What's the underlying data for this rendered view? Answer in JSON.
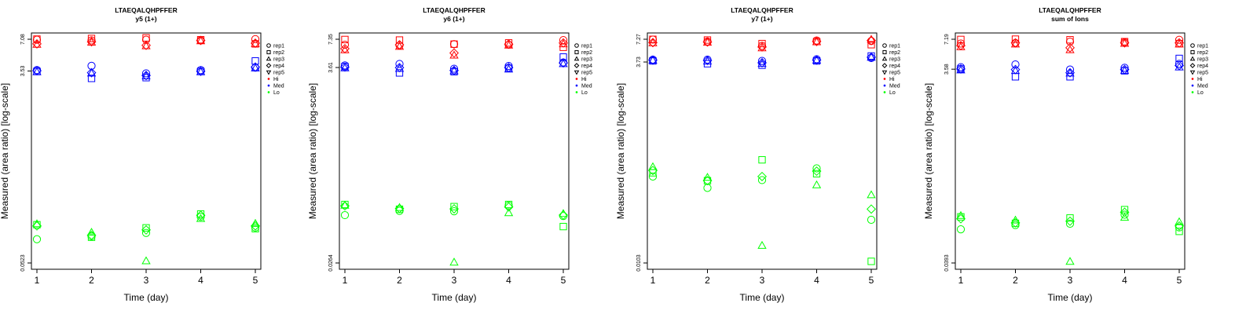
{
  "figure": {
    "colors": {
      "Hi": "#ff0000",
      "Med": "#0000ff",
      "Lo": "#00ff00"
    },
    "legend_entries": [
      {
        "label": "rep1",
        "symbol": "circle"
      },
      {
        "label": "rep2",
        "symbol": "square"
      },
      {
        "label": "rep3",
        "symbol": "triangle-up"
      },
      {
        "label": "rep4",
        "symbol": "diamond"
      },
      {
        "label": "rep5",
        "symbol": "triangle-down"
      },
      {
        "label": "Hi",
        "symbol": "dot",
        "color": "#ff0000"
      },
      {
        "label": "Med",
        "symbol": "dot",
        "color": "#0000ff"
      },
      {
        "label": "Lo",
        "symbol": "dot",
        "color": "#00ff00"
      }
    ]
  },
  "chart_data": [
    {
      "type": "scatter",
      "title": "LTAEQALQHPFFER",
      "subtitle": "y5 (1+)",
      "xlabel": "Time (day)",
      "ylabel": "Measured (area ratio) [log-scale]",
      "x": [
        1,
        2,
        3,
        4,
        5
      ],
      "xlim": [
        0.9,
        5.1
      ],
      "yscale": "log",
      "ylim": [
        0.0523,
        7.08
      ],
      "yticks": [
        "0.0523",
        "3.53",
        "7.08"
      ],
      "legend_position": "right",
      "series": [
        {
          "name": "Hi",
          "rep": "rep1",
          "values": [
            7.0,
            6.9,
            7.0,
            6.9,
            7.1
          ]
        },
        {
          "name": "Hi",
          "rep": "rep2",
          "values": [
            7.1,
            7.2,
            7.3,
            7.0,
            6.4
          ]
        },
        {
          "name": "Hi",
          "rep": "rep3",
          "values": [
            6.3,
            6.6,
            6.1,
            6.8,
            6.4
          ]
        },
        {
          "name": "Hi",
          "rep": "rep4",
          "values": [
            6.4,
            6.7,
            6.2,
            6.9,
            6.5
          ]
        },
        {
          "name": "Med",
          "rep": "rep1",
          "values": [
            3.6,
            3.95,
            3.35,
            3.6,
            3.8
          ]
        },
        {
          "name": "Med",
          "rep": "rep2",
          "values": [
            3.5,
            3.0,
            3.05,
            3.5,
            4.4
          ]
        },
        {
          "name": "Med",
          "rep": "rep3",
          "values": [
            3.45,
            3.35,
            3.15,
            3.45,
            3.75
          ]
        },
        {
          "name": "Med",
          "rep": "rep4",
          "values": [
            3.55,
            3.4,
            3.2,
            3.5,
            3.85
          ]
        },
        {
          "name": "Lo",
          "rep": "rep1",
          "values": [
            0.088,
            0.094,
            0.101,
            0.144,
            0.114
          ]
        },
        {
          "name": "Lo",
          "rep": "rep2",
          "values": [
            0.121,
            0.092,
            0.113,
            0.153,
            0.111
          ]
        },
        {
          "name": "Lo",
          "rep": "rep3",
          "values": [
            0.123,
            0.102,
            0.0545,
            0.138,
            0.124
          ]
        },
        {
          "name": "Lo",
          "rep": "rep4",
          "values": [
            0.118,
            0.096,
            0.108,
            0.149,
            0.118
          ]
        }
      ]
    },
    {
      "type": "scatter",
      "title": "LTAEQALQHPFFER",
      "subtitle": "y6 (1+)",
      "xlabel": "Time (day)",
      "ylabel": "Measured (area ratio) [log-scale]",
      "x": [
        1,
        2,
        3,
        4,
        5
      ],
      "xlim": [
        0.9,
        5.1
      ],
      "yscale": "log",
      "ylim": [
        0.0264,
        7.35
      ],
      "yticks": [
        "0.0264",
        "3.61",
        "7.35"
      ],
      "legend_position": "right",
      "series": [
        {
          "name": "Hi",
          "rep": "rep1",
          "values": [
            6.4,
            6.3,
            6.5,
            6.4,
            7.2
          ]
        },
        {
          "name": "Hi",
          "rep": "rep2",
          "values": [
            7.3,
            7.2,
            6.5,
            6.7,
            6.0
          ]
        },
        {
          "name": "Hi",
          "rep": "rep3",
          "values": [
            5.6,
            6.1,
            4.9,
            6.3,
            6.5
          ]
        },
        {
          "name": "Hi",
          "rep": "rep4",
          "values": [
            5.8,
            6.4,
            5.2,
            6.5,
            6.7
          ]
        },
        {
          "name": "Med",
          "rep": "rep1",
          "values": [
            3.8,
            3.95,
            3.5,
            3.75,
            4.1
          ]
        },
        {
          "name": "Med",
          "rep": "rep2",
          "values": [
            3.7,
            3.15,
            3.25,
            3.55,
            4.7
          ]
        },
        {
          "name": "Med",
          "rep": "rep3",
          "values": [
            3.55,
            3.5,
            3.3,
            3.45,
            3.95
          ]
        },
        {
          "name": "Med",
          "rep": "rep4",
          "values": [
            3.65,
            3.6,
            3.35,
            3.6,
            4.05
          ]
        },
        {
          "name": "Lo",
          "rep": "rep1",
          "values": [
            0.088,
            0.098,
            0.097,
            0.112,
            0.086
          ]
        },
        {
          "name": "Lo",
          "rep": "rep2",
          "values": [
            0.115,
            0.102,
            0.109,
            0.115,
            0.066
          ]
        },
        {
          "name": "Lo",
          "rep": "rep3",
          "values": [
            0.112,
            0.106,
            0.0268,
            0.093,
            0.091
          ]
        },
        {
          "name": "Lo",
          "rep": "rep4",
          "values": [
            0.111,
            0.104,
            0.103,
            0.108,
            0.088
          ]
        }
      ]
    },
    {
      "type": "scatter",
      "title": "LTAEQALQHPFFER",
      "subtitle": "y7 (1+)",
      "xlabel": "Time (day)",
      "ylabel": "Measured (area ratio) [log-scale]",
      "x": [
        1,
        2,
        3,
        4,
        5
      ],
      "xlim": [
        0.9,
        5.1
      ],
      "yscale": "log",
      "ylim": [
        0.0103,
        7.27
      ],
      "yticks": [
        "0.0103",
        "3.73",
        "7.27"
      ],
      "legend_position": "right",
      "series": [
        {
          "name": "Hi",
          "rep": "rep1",
          "values": [
            7.2,
            6.8,
            6.0,
            7.0,
            6.9
          ]
        },
        {
          "name": "Hi",
          "rep": "rep2",
          "values": [
            7.25,
            7.1,
            6.4,
            6.8,
            6.2
          ]
        },
        {
          "name": "Hi",
          "rep": "rep3",
          "values": [
            6.5,
            6.6,
            5.6,
            6.7,
            7.2
          ]
        },
        {
          "name": "Hi",
          "rep": "rep4",
          "values": [
            6.6,
            6.7,
            5.8,
            6.8,
            7.0
          ]
        },
        {
          "name": "Med",
          "rep": "rep1",
          "values": [
            4.0,
            4.0,
            3.85,
            4.05,
            4.2
          ]
        },
        {
          "name": "Med",
          "rep": "rep2",
          "values": [
            3.85,
            3.55,
            3.4,
            3.85,
            4.45
          ]
        },
        {
          "name": "Med",
          "rep": "rep3",
          "values": [
            3.9,
            3.8,
            3.55,
            3.9,
            4.25
          ]
        },
        {
          "name": "Med",
          "rep": "rep4",
          "values": [
            3.95,
            3.9,
            3.65,
            3.95,
            4.3
          ]
        },
        {
          "name": "Lo",
          "rep": "rep1",
          "values": [
            0.13,
            0.093,
            0.117,
            0.165,
            0.0365
          ]
        },
        {
          "name": "Lo",
          "rep": "rep2",
          "values": [
            0.145,
            0.115,
            0.212,
            0.141,
            0.0108
          ]
        },
        {
          "name": "Lo",
          "rep": "rep3",
          "values": [
            0.172,
            0.126,
            0.0171,
            0.101,
            0.0756
          ]
        },
        {
          "name": "Lo",
          "rep": "rep4",
          "values": [
            0.155,
            0.115,
            0.13,
            0.152,
            0.05
          ]
        }
      ]
    },
    {
      "type": "scatter",
      "title": "LTAEQALQHPFFER",
      "subtitle": "sum of Ions",
      "xlabel": "Time (day)",
      "ylabel": "Measured (area ratio) [log-scale]",
      "x": [
        1,
        2,
        3,
        4,
        5
      ],
      "xlim": [
        0.9,
        5.1
      ],
      "yscale": "log",
      "ylim": [
        0.0393,
        7.19
      ],
      "yticks": [
        "0.0393",
        "3.58",
        "7.19"
      ],
      "legend_position": "right",
      "series": [
        {
          "name": "Hi",
          "rep": "rep1",
          "values": [
            6.5,
            6.6,
            6.8,
            6.7,
            7.1
          ]
        },
        {
          "name": "Hi",
          "rep": "rep2",
          "values": [
            7.15,
            7.2,
            7.1,
            6.8,
            6.5
          ]
        },
        {
          "name": "Hi",
          "rep": "rep3",
          "values": [
            6.0,
            6.4,
            5.6,
            6.5,
            6.4
          ]
        },
        {
          "name": "Hi",
          "rep": "rep4",
          "values": [
            6.2,
            6.6,
            5.9,
            6.6,
            6.6
          ]
        },
        {
          "name": "Med",
          "rep": "rep1",
          "values": [
            3.75,
            4.0,
            3.55,
            3.7,
            4.05
          ]
        },
        {
          "name": "Med",
          "rep": "rep2",
          "values": [
            3.6,
            3.0,
            3.0,
            3.45,
            4.6
          ]
        },
        {
          "name": "Med",
          "rep": "rep3",
          "values": [
            3.5,
            3.45,
            3.25,
            3.45,
            3.75
          ]
        },
        {
          "name": "Med",
          "rep": "rep4",
          "values": [
            3.6,
            3.55,
            3.3,
            3.55,
            3.9
          ]
        },
        {
          "name": "Lo",
          "rep": "rep1",
          "values": [
            0.086,
            0.095,
            0.098,
            0.121,
            0.09
          ]
        },
        {
          "name": "Lo",
          "rep": "rep2",
          "values": [
            0.115,
            0.099,
            0.112,
            0.136,
            0.082
          ]
        },
        {
          "name": "Lo",
          "rep": "rep3",
          "values": [
            0.118,
            0.106,
            0.0405,
            0.113,
            0.102
          ]
        },
        {
          "name": "Lo",
          "rep": "rep4",
          "values": [
            0.11,
            0.1,
            0.104,
            0.128,
            0.093
          ]
        }
      ]
    }
  ]
}
